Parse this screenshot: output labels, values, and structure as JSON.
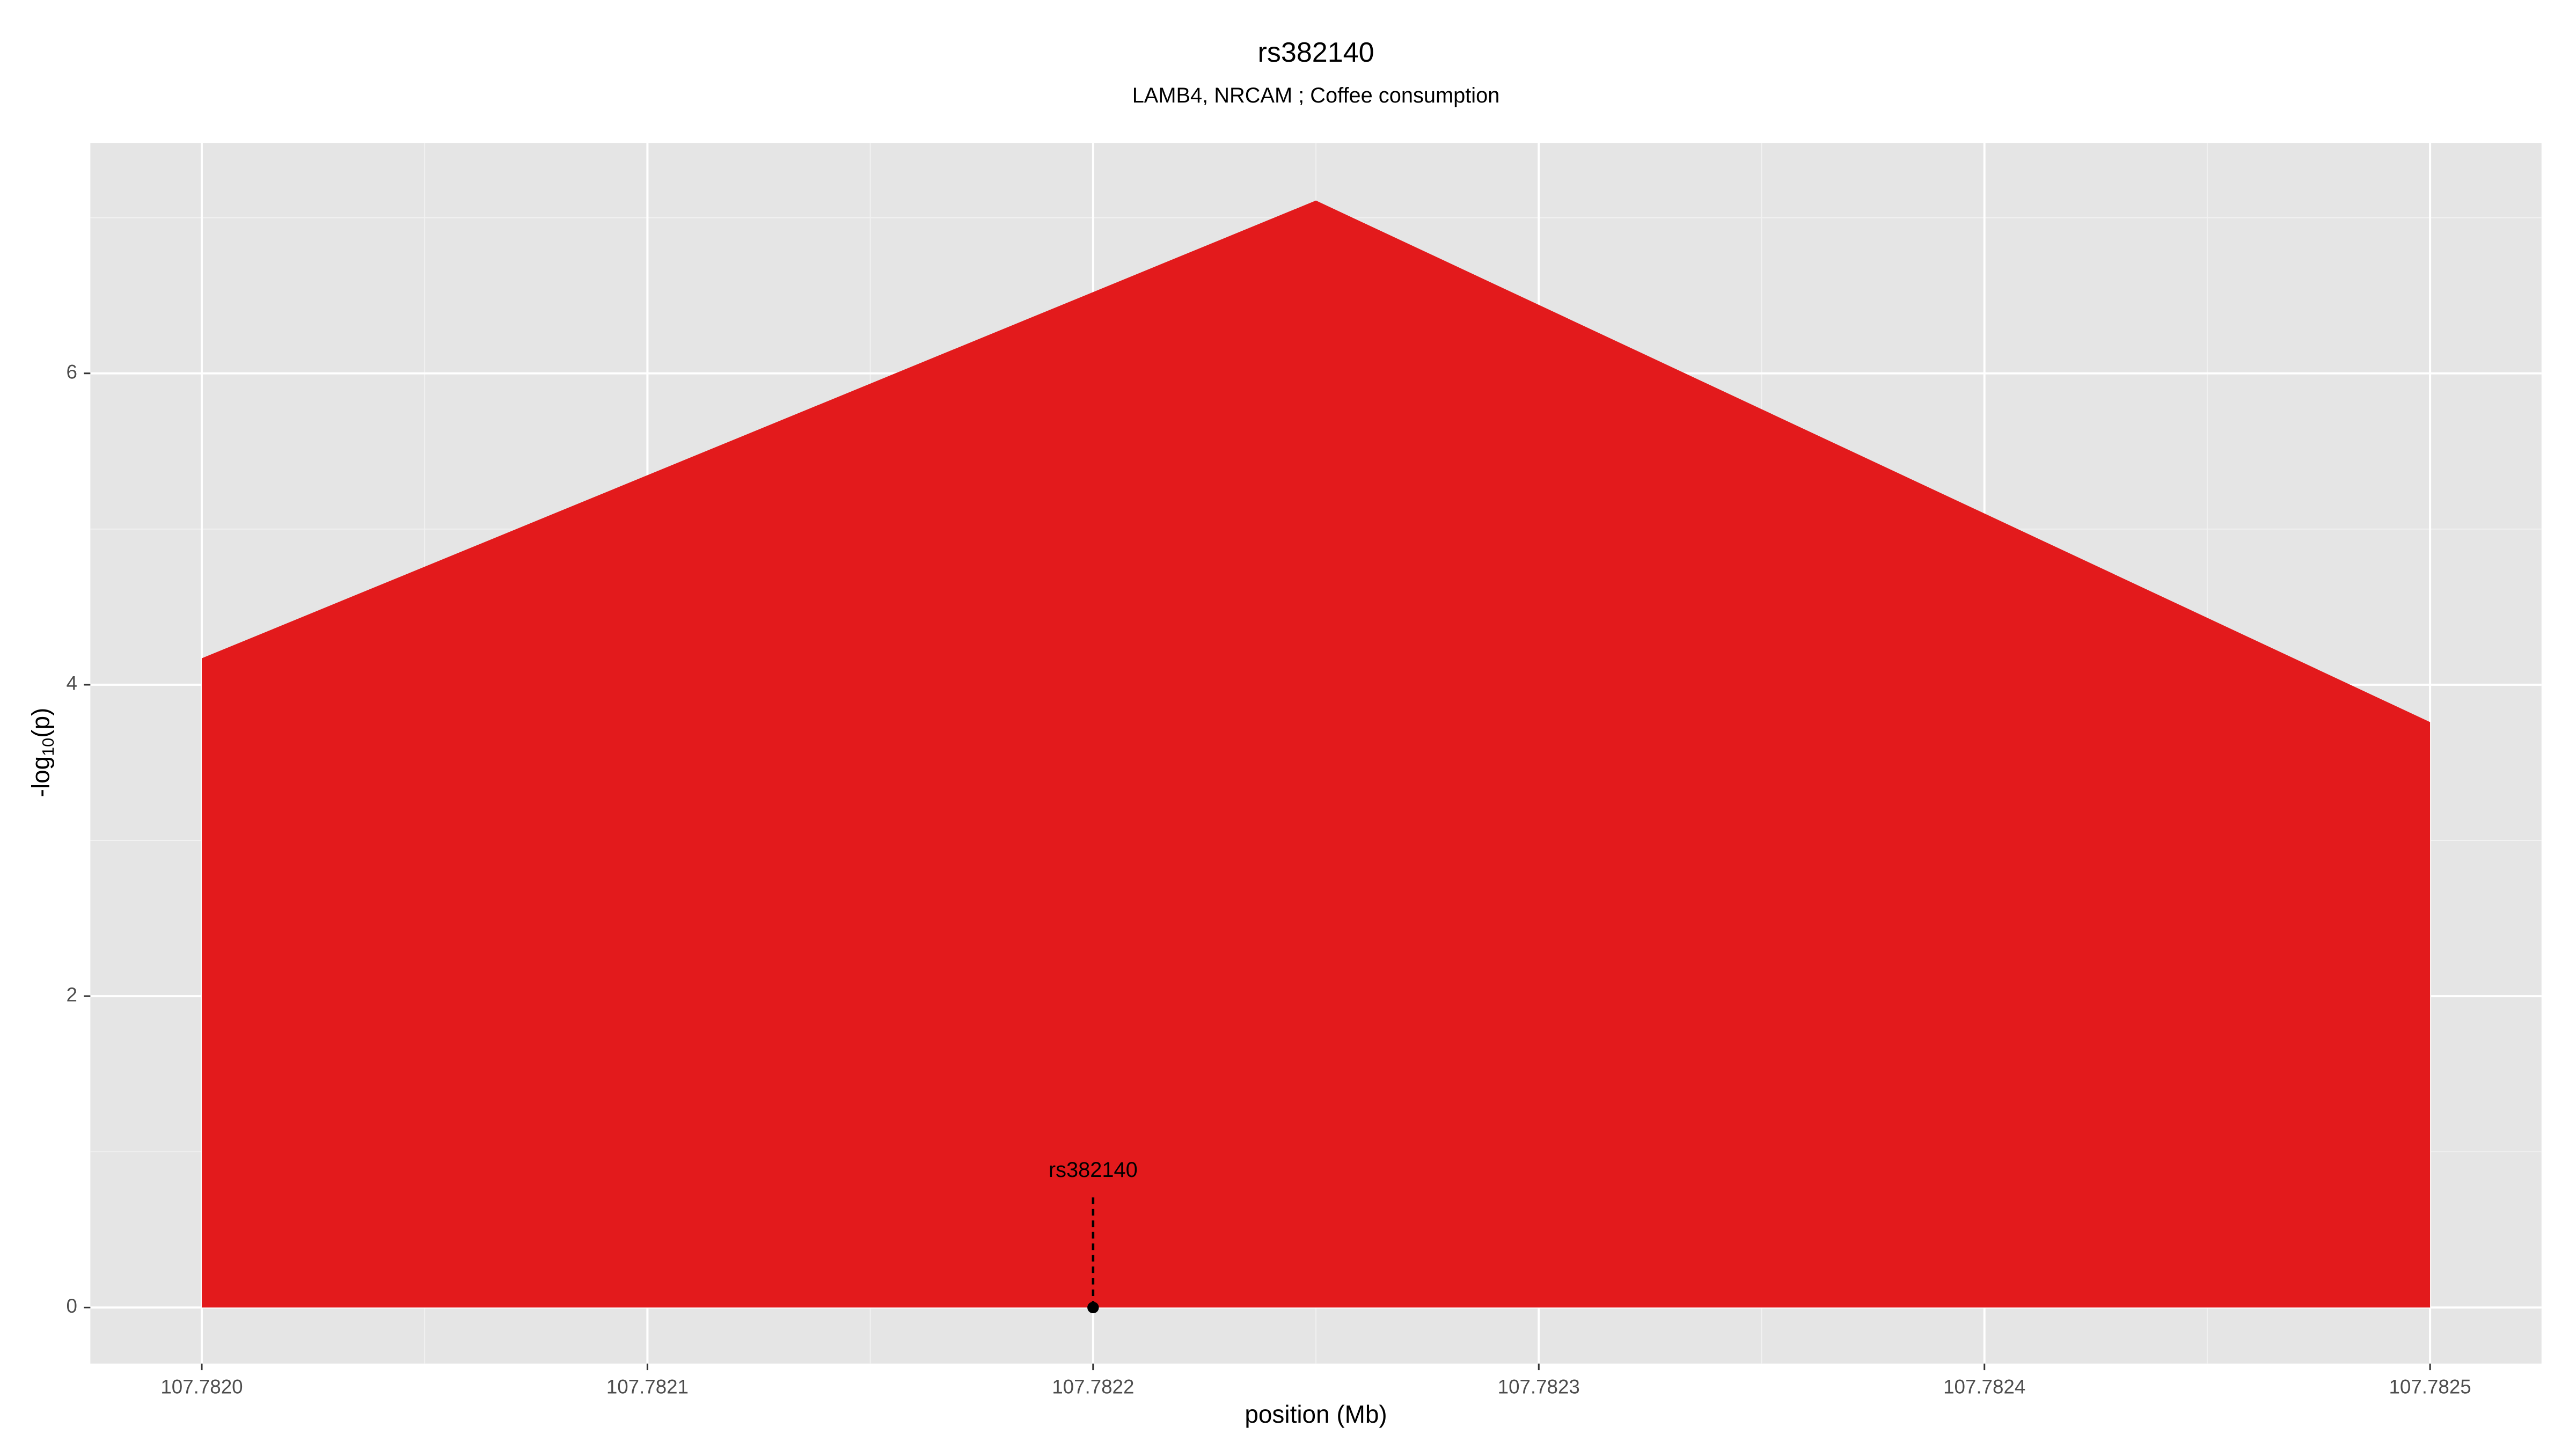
{
  "chart_data": {
    "type": "area",
    "title": "rs382140",
    "subtitle": "LAMB4, NRCAM ; Coffee consumption",
    "xlabel": "position (Mb)",
    "ylabel": {
      "base": "-log",
      "subscript": "10",
      "suffix": "(p)"
    },
    "x": [
      107.782,
      107.78225,
      107.7825
    ],
    "values": [
      4.17,
      7.11,
      3.76
    ],
    "color": "#e31a1c",
    "xlim": [
      107.781975,
      107.782525
    ],
    "xticks": [
      {
        "value": 107.782,
        "label": "107.7820"
      },
      {
        "value": 107.7821,
        "label": "107.7821"
      },
      {
        "value": 107.7822,
        "label": "107.7822"
      },
      {
        "value": 107.7823,
        "label": "107.7823"
      },
      {
        "value": 107.7824,
        "label": "107.7824"
      },
      {
        "value": 107.7825,
        "label": "107.7825"
      }
    ],
    "ylim": [
      -0.36,
      7.48
    ],
    "yticks": [
      0,
      2,
      4,
      6
    ],
    "grid": true,
    "annotation": {
      "label": "rs382140",
      "x": 107.7822,
      "y": 0
    }
  }
}
